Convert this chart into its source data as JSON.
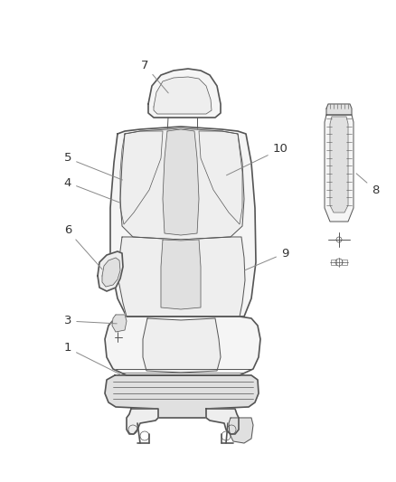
{
  "background_color": "#ffffff",
  "line_color": "#555555",
  "label_color": "#333333",
  "figsize": [
    4.38,
    5.33
  ],
  "dpi": 100,
  "seat_outline_color": "#666666",
  "inner_line_color": "#888888",
  "fill_light": "#f5f5f5",
  "fill_mid": "#eeeeee",
  "fill_dark": "#e0e0e0"
}
